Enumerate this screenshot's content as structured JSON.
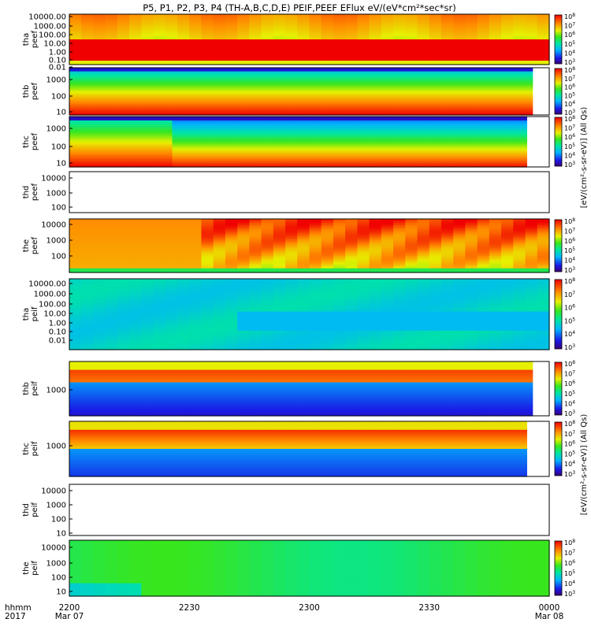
{
  "chart_data": {
    "type": "heatmap",
    "title": "P5, P1, P2, P3, P4 (TH-A,B,C,D,E) PEIF,PEEF EFlux eV/(eV*cm²*sec*sr)",
    "x_axis": {
      "label_line1": "hhmm",
      "label_line2": "2017",
      "ticks": [
        {
          "time": "2200",
          "date": "Mar 07"
        },
        {
          "time": "2230",
          "date": ""
        },
        {
          "time": "2300",
          "date": ""
        },
        {
          "time": "2330",
          "date": ""
        },
        {
          "time": "0000",
          "date": "Mar 08"
        }
      ],
      "range": [
        "2017-03-07 22:00",
        "2017-03-08 00:00"
      ]
    },
    "colorbar_labels": {
      "upper": "[eV/(cm²-s-sr-eV)] (All Qs)",
      "lower": "[eV/(cm²-s-sr-eV)] (All Qs)"
    },
    "colorbar_range": [
      "1e3",
      "1e8"
    ],
    "panels": [
      {
        "id": "tha_peef",
        "label": "tha peef",
        "yticks": [
          "10000.00",
          "1000.00",
          "100.00",
          "10.00",
          "1.00",
          "0.10",
          "0.01"
        ],
        "has_colorbar": true
      },
      {
        "id": "thb_peef",
        "label": "thb peef",
        "yticks": [
          "1000",
          "100",
          "10"
        ],
        "has_colorbar": true
      },
      {
        "id": "thc_peef",
        "label": "thc peef",
        "yticks": [
          "1000",
          "100",
          "10"
        ],
        "has_colorbar": true
      },
      {
        "id": "thd_peef",
        "label": "thd peef",
        "yticks": [
          "10000",
          "1000",
          "100"
        ],
        "has_colorbar": false
      },
      {
        "id": "the_peef",
        "label": "the peef",
        "yticks": [
          "10000",
          "1000",
          "100"
        ],
        "has_colorbar": true
      },
      {
        "id": "tha_peif",
        "label": "tha peif",
        "yticks": [
          "10000.00",
          "1000.00",
          "100.00",
          "10.00",
          "1.00",
          "0.10",
          "0.01"
        ],
        "has_colorbar": true
      },
      {
        "id": "thb_peif",
        "label": "thb peif",
        "yticks": [
          "1000"
        ],
        "has_colorbar": true
      },
      {
        "id": "thc_peif",
        "label": "thc peif",
        "yticks": [
          "1000"
        ],
        "has_colorbar": true
      },
      {
        "id": "thd_peif",
        "label": "thd peif",
        "yticks": [
          "10000",
          "1000",
          "100",
          "10"
        ],
        "has_colorbar": false
      },
      {
        "id": "the_peif",
        "label": "the peif",
        "yticks": [
          "10000",
          "1000",
          "100",
          "10"
        ],
        "has_colorbar": true
      }
    ]
  }
}
